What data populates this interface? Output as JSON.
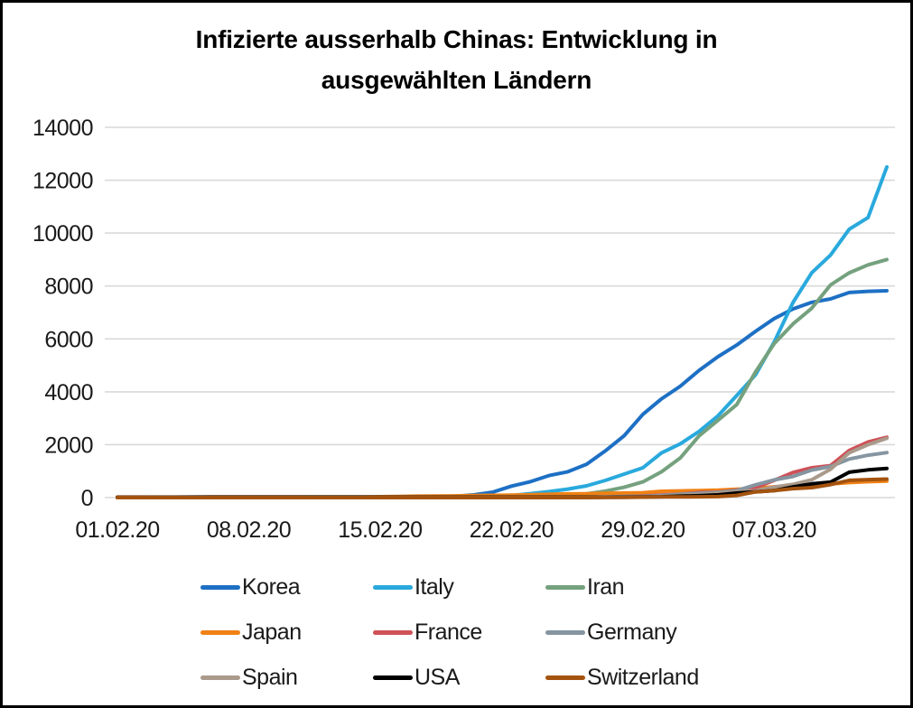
{
  "title": {
    "lines": [
      "Infizierte ausserhalb Chinas: Entwicklung in",
      "ausgewählten Ländern"
    ]
  },
  "colors": {
    "grid": "#d9d9d9",
    "axis_text": "#1a1a1a",
    "title_text": "#000000",
    "background": "#ffffff",
    "frame": "#000000"
  },
  "chart_data": {
    "type": "line",
    "title": "Infizierte ausserhalb Chinas: Entwicklung in ausgewählten Ländern",
    "xlabel": "",
    "ylabel": "",
    "ylim": [
      0,
      14000
    ],
    "yticks": [
      0,
      2000,
      4000,
      6000,
      8000,
      10000,
      12000,
      14000
    ],
    "grid": "horizontal",
    "legend_position": "bottom",
    "legend_columns": 3,
    "x": [
      "01.02.20",
      "02.02.20",
      "03.02.20",
      "04.02.20",
      "05.02.20",
      "06.02.20",
      "07.02.20",
      "08.02.20",
      "09.02.20",
      "10.02.20",
      "11.02.20",
      "12.02.20",
      "13.02.20",
      "14.02.20",
      "15.02.20",
      "16.02.20",
      "17.02.20",
      "18.02.20",
      "19.02.20",
      "20.02.20",
      "21.02.20",
      "22.02.20",
      "23.02.20",
      "24.02.20",
      "25.02.20",
      "26.02.20",
      "27.02.20",
      "28.02.20",
      "29.02.20",
      "01.03.20",
      "02.03.20",
      "03.03.20",
      "04.03.20",
      "05.03.20",
      "06.03.20",
      "07.03.20",
      "08.03.20",
      "09.03.20",
      "10.03.20",
      "11.03.20",
      "12.03.20",
      "13.03.20"
    ],
    "xtick_indices": [
      0,
      7,
      14,
      21,
      28,
      35
    ],
    "xtick_labels": [
      "01.02.20",
      "08.02.20",
      "15.02.20",
      "22.02.20",
      "29.02.20",
      "07.03.20"
    ],
    "series": [
      {
        "name": "Korea",
        "color": "#1d70c4",
        "values": [
          12,
          15,
          15,
          16,
          23,
          24,
          24,
          24,
          25,
          27,
          28,
          28,
          28,
          28,
          28,
          29,
          30,
          31,
          51,
          104,
          204,
          433,
          602,
          833,
          977,
          1261,
          1766,
          2337,
          3150,
          3736,
          4212,
          4812,
          5328,
          5766,
          6284,
          6767,
          7134,
          7382,
          7513,
          7755,
          7800,
          7820
        ]
      },
      {
        "name": "Italy",
        "color": "#29a9dd",
        "values": [
          2,
          2,
          2,
          2,
          2,
          3,
          3,
          3,
          3,
          3,
          3,
          3,
          3,
          3,
          3,
          3,
          3,
          3,
          3,
          3,
          20,
          79,
          150,
          227,
          320,
          445,
          650,
          888,
          1128,
          1694,
          2036,
          2502,
          3089,
          3858,
          4636,
          5883,
          7375,
          8500,
          9172,
          10149,
          10590,
          12500
        ]
      },
      {
        "name": "Iran",
        "color": "#75a17e",
        "values": [
          0,
          0,
          0,
          0,
          0,
          0,
          0,
          0,
          0,
          0,
          0,
          0,
          0,
          0,
          0,
          0,
          0,
          0,
          2,
          5,
          18,
          28,
          43,
          61,
          95,
          139,
          245,
          388,
          593,
          978,
          1501,
          2336,
          2922,
          3513,
          4747,
          5823,
          6566,
          7161,
          8042,
          8500,
          8800,
          9000
        ]
      },
      {
        "name": "Japan",
        "color": "#f08114",
        "values": [
          20,
          20,
          20,
          22,
          22,
          25,
          25,
          25,
          26,
          26,
          26,
          28,
          28,
          29,
          33,
          41,
          53,
          59,
          66,
          74,
          84,
          94,
          105,
          122,
          139,
          147,
          159,
          170,
          186,
          239,
          254,
          268,
          284,
          317,
          349,
          408,
          455,
          488,
          514,
          568,
          600,
          620
        ]
      },
      {
        "name": "France",
        "color": "#cf5158",
        "values": [
          6,
          6,
          6,
          6,
          6,
          6,
          6,
          11,
          11,
          11,
          11,
          11,
          11,
          11,
          12,
          12,
          12,
          12,
          12,
          12,
          12,
          12,
          12,
          12,
          12,
          14,
          18,
          38,
          57,
          100,
          130,
          191,
          204,
          285,
          377,
          653,
          949,
          1126,
          1209,
          1784,
          2100,
          2280
        ]
      },
      {
        "name": "Germany",
        "color": "#8595a1",
        "values": [
          8,
          10,
          12,
          12,
          12,
          12,
          13,
          14,
          14,
          14,
          14,
          16,
          16,
          16,
          16,
          16,
          16,
          16,
          16,
          16,
          16,
          16,
          16,
          16,
          16,
          17,
          27,
          46,
          48,
          79,
          130,
          159,
          196,
          262,
          482,
          670,
          799,
          1040,
          1176,
          1457,
          1600,
          1700
        ]
      },
      {
        "name": "Spain",
        "color": "#aa9a8b",
        "values": [
          0,
          0,
          1,
          1,
          1,
          1,
          1,
          1,
          2,
          2,
          2,
          2,
          2,
          2,
          2,
          2,
          2,
          2,
          2,
          2,
          2,
          2,
          2,
          2,
          2,
          6,
          13,
          15,
          32,
          45,
          84,
          120,
          165,
          222,
          259,
          400,
          500,
          673,
          1073,
          1695,
          2000,
          2240
        ]
      },
      {
        "name": "USA",
        "color": "#000000",
        "values": [
          8,
          8,
          11,
          11,
          11,
          12,
          12,
          12,
          12,
          12,
          13,
          13,
          14,
          14,
          14,
          15,
          15,
          15,
          15,
          15,
          15,
          15,
          15,
          15,
          15,
          15,
          15,
          16,
          24,
          30,
          53,
          73,
          104,
          172,
          217,
          262,
          402,
          518,
          583,
          959,
          1050,
          1100
        ]
      },
      {
        "name": "Switzerland",
        "color": "#a4530f",
        "values": [
          0,
          0,
          0,
          0,
          0,
          0,
          0,
          0,
          0,
          0,
          0,
          0,
          0,
          0,
          0,
          0,
          0,
          0,
          0,
          0,
          0,
          0,
          0,
          0,
          1,
          1,
          8,
          8,
          18,
          24,
          24,
          30,
          38,
          82,
          214,
          268,
          337,
          374,
          491,
          652,
          680,
          700
        ]
      }
    ]
  }
}
